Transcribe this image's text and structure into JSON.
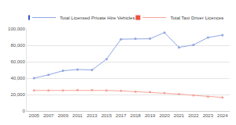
{
  "chart_data": {
    "type": "line",
    "categories": [
      "2005",
      "2007",
      "2009",
      "2011",
      "2013",
      "2015",
      "2017",
      "2018",
      "2019",
      "2020",
      "2021",
      "2022",
      "2023",
      "2024"
    ],
    "series": [
      {
        "name": "Total Licensed Private Hire Vehicles",
        "color": "#8fa6e3",
        "marker": "circle",
        "values": [
          40000,
          44000,
          49000,
          50500,
          50000,
          63000,
          87500,
          88000,
          88000,
          95500,
          77500,
          80500,
          89500,
          92500
        ]
      },
      {
        "name": "Total Taxi Driver Licences",
        "color": "#f4a49a",
        "marker": "circle",
        "values": [
          25000,
          25000,
          25000,
          25500,
          25500,
          25000,
          24500,
          23500,
          23000,
          22000,
          20500,
          19000,
          17500,
          16500
        ]
      }
    ],
    "ylim": [
      0,
      100000
    ],
    "yticks": [
      0,
      {
        "value": 20000,
        "label": "20,000"
      },
      {
        "value": 40000,
        "label": "40,000"
      },
      {
        "value": 60000,
        "label": "60,000"
      },
      {
        "value": 80000,
        "label": "80,000"
      },
      {
        "value": 100000,
        "label": "100,000"
      }
    ],
    "grid": true,
    "legend": "top"
  }
}
